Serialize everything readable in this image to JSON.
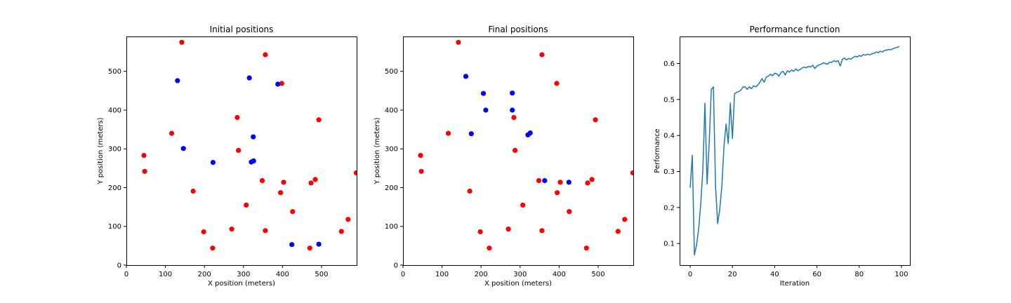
{
  "chart_data": [
    {
      "type": "scatter",
      "title": "Initial positions",
      "xlabel": "X position (meters)",
      "ylabel": "Y position (meters)",
      "xlim": [
        0,
        590
      ],
      "ylim": [
        0,
        590
      ],
      "xticks": [
        0,
        100,
        200,
        300,
        400,
        500
      ],
      "yticks": [
        0,
        100,
        200,
        300,
        400,
        500
      ],
      "grid": false,
      "series": [
        {
          "color": "#ff0000",
          "points": [
            [
              142,
              575
            ],
            [
              356,
              543
            ],
            [
              398,
              469
            ],
            [
              493,
              375
            ],
            [
              284,
              381
            ],
            [
              116,
              340
            ],
            [
              45,
              283
            ],
            [
              47,
              242
            ],
            [
              287,
              296
            ],
            [
              171,
              191
            ],
            [
              348,
              218
            ],
            [
              403,
              214
            ],
            [
              473,
              212
            ],
            [
              484,
              221
            ],
            [
              589,
              238
            ],
            [
              395,
              187
            ],
            [
              307,
              155
            ],
            [
              426,
              138
            ],
            [
              198,
              86
            ],
            [
              270,
              93
            ],
            [
              356,
              89
            ],
            [
              568,
              118
            ],
            [
              551,
              87
            ],
            [
              221,
              44
            ],
            [
              470,
              44
            ]
          ]
        },
        {
          "color": "#0000ff",
          "points": [
            [
              131,
              476
            ],
            [
              315,
              483
            ],
            [
              388,
              467
            ],
            [
              325,
              331
            ],
            [
              146,
              301
            ],
            [
              222,
              265
            ],
            [
              320,
              266
            ],
            [
              326,
              269
            ],
            [
              424,
              53
            ],
            [
              493,
              54
            ]
          ]
        }
      ]
    },
    {
      "type": "scatter",
      "title": "Final positions",
      "xlabel": "X position (meters)",
      "ylabel": "Y position (meters)",
      "xlim": [
        0,
        590
      ],
      "ylim": [
        0,
        590
      ],
      "xticks": [
        0,
        100,
        200,
        300,
        400,
        500
      ],
      "yticks": [
        0,
        100,
        200,
        300,
        400,
        500
      ],
      "grid": false,
      "series": [
        {
          "color": "#ff0000",
          "points": [
            [
              142,
              575
            ],
            [
              356,
              543
            ],
            [
              394,
              469
            ],
            [
              493,
              375
            ],
            [
              284,
              381
            ],
            [
              116,
              340
            ],
            [
              45,
              283
            ],
            [
              47,
              242
            ],
            [
              287,
              296
            ],
            [
              171,
              191
            ],
            [
              348,
              218
            ],
            [
              403,
              214
            ],
            [
              473,
              212
            ],
            [
              484,
              221
            ],
            [
              589,
              238
            ],
            [
              395,
              187
            ],
            [
              307,
              155
            ],
            [
              426,
              138
            ],
            [
              198,
              86
            ],
            [
              270,
              93
            ],
            [
              356,
              89
            ],
            [
              568,
              118
            ],
            [
              551,
              87
            ],
            [
              221,
              44
            ],
            [
              470,
              44
            ]
          ]
        },
        {
          "color": "#0000ff",
          "points": [
            [
              161,
              487
            ],
            [
              206,
              443
            ],
            [
              280,
              444
            ],
            [
              212,
              400
            ],
            [
              280,
              400
            ],
            [
              175,
              339
            ],
            [
              320,
              336
            ],
            [
              326,
              341
            ],
            [
              363,
              218
            ],
            [
              425,
              214
            ]
          ]
        }
      ]
    },
    {
      "type": "line",
      "title": "Performance function",
      "xlabel": "Iteration",
      "ylabel": "Performance",
      "xlim": [
        -5,
        104
      ],
      "ylim": [
        0.04,
        0.675
      ],
      "xticks": [
        0,
        20,
        40,
        60,
        80,
        100
      ],
      "yticks": [
        0.1,
        0.2,
        0.3,
        0.4,
        0.5,
        0.6
      ],
      "ytick_labels": [
        "0.1",
        "0.2",
        "0.3",
        "0.4",
        "0.5",
        "0.6"
      ],
      "grid": false,
      "series": [
        {
          "color": "#1f77b4",
          "x": [
            0,
            1,
            2,
            3,
            4,
            5,
            6,
            7,
            8,
            9,
            10,
            11,
            12,
            13,
            14,
            15,
            16,
            17,
            18,
            19,
            20,
            21,
            22,
            23,
            24,
            25,
            26,
            27,
            28,
            29,
            30,
            31,
            32,
            33,
            34,
            35,
            36,
            37,
            38,
            39,
            40,
            41,
            42,
            43,
            44,
            45,
            46,
            47,
            48,
            49,
            50,
            51,
            52,
            53,
            54,
            55,
            56,
            57,
            58,
            59,
            60,
            61,
            62,
            63,
            64,
            65,
            66,
            67,
            68,
            69,
            70,
            71,
            72,
            73,
            74,
            75,
            76,
            77,
            78,
            79,
            80,
            81,
            82,
            83,
            84,
            85,
            86,
            87,
            88,
            89,
            90,
            91,
            92,
            93,
            94,
            95,
            96,
            97,
            98,
            99
          ],
          "y": [
            0.255,
            0.345,
            0.068,
            0.095,
            0.14,
            0.21,
            0.305,
            0.49,
            0.265,
            0.38,
            0.528,
            0.535,
            0.26,
            0.155,
            0.195,
            0.26,
            0.37,
            0.432,
            0.378,
            0.49,
            0.392,
            0.516,
            0.52,
            0.522,
            0.526,
            0.535,
            0.535,
            0.528,
            0.535,
            0.53,
            0.538,
            0.535,
            0.54,
            0.548,
            0.558,
            0.548,
            0.562,
            0.565,
            0.57,
            0.566,
            0.573,
            0.571,
            0.565,
            0.575,
            0.578,
            0.568,
            0.58,
            0.576,
            0.582,
            0.578,
            0.585,
            0.58,
            0.583,
            0.588,
            0.59,
            0.588,
            0.592,
            0.59,
            0.595,
            0.586,
            0.593,
            0.596,
            0.598,
            0.602,
            0.6,
            0.598,
            0.604,
            0.603,
            0.608,
            0.605,
            0.608,
            0.593,
            0.611,
            0.615,
            0.61,
            0.614,
            0.612,
            0.616,
            0.62,
            0.618,
            0.622,
            0.62,
            0.625,
            0.623,
            0.626,
            0.624,
            0.627,
            0.628,
            0.632,
            0.63,
            0.634,
            0.632,
            0.636,
            0.637,
            0.639,
            0.638,
            0.641,
            0.643,
            0.645,
            0.647
          ]
        }
      ]
    }
  ]
}
